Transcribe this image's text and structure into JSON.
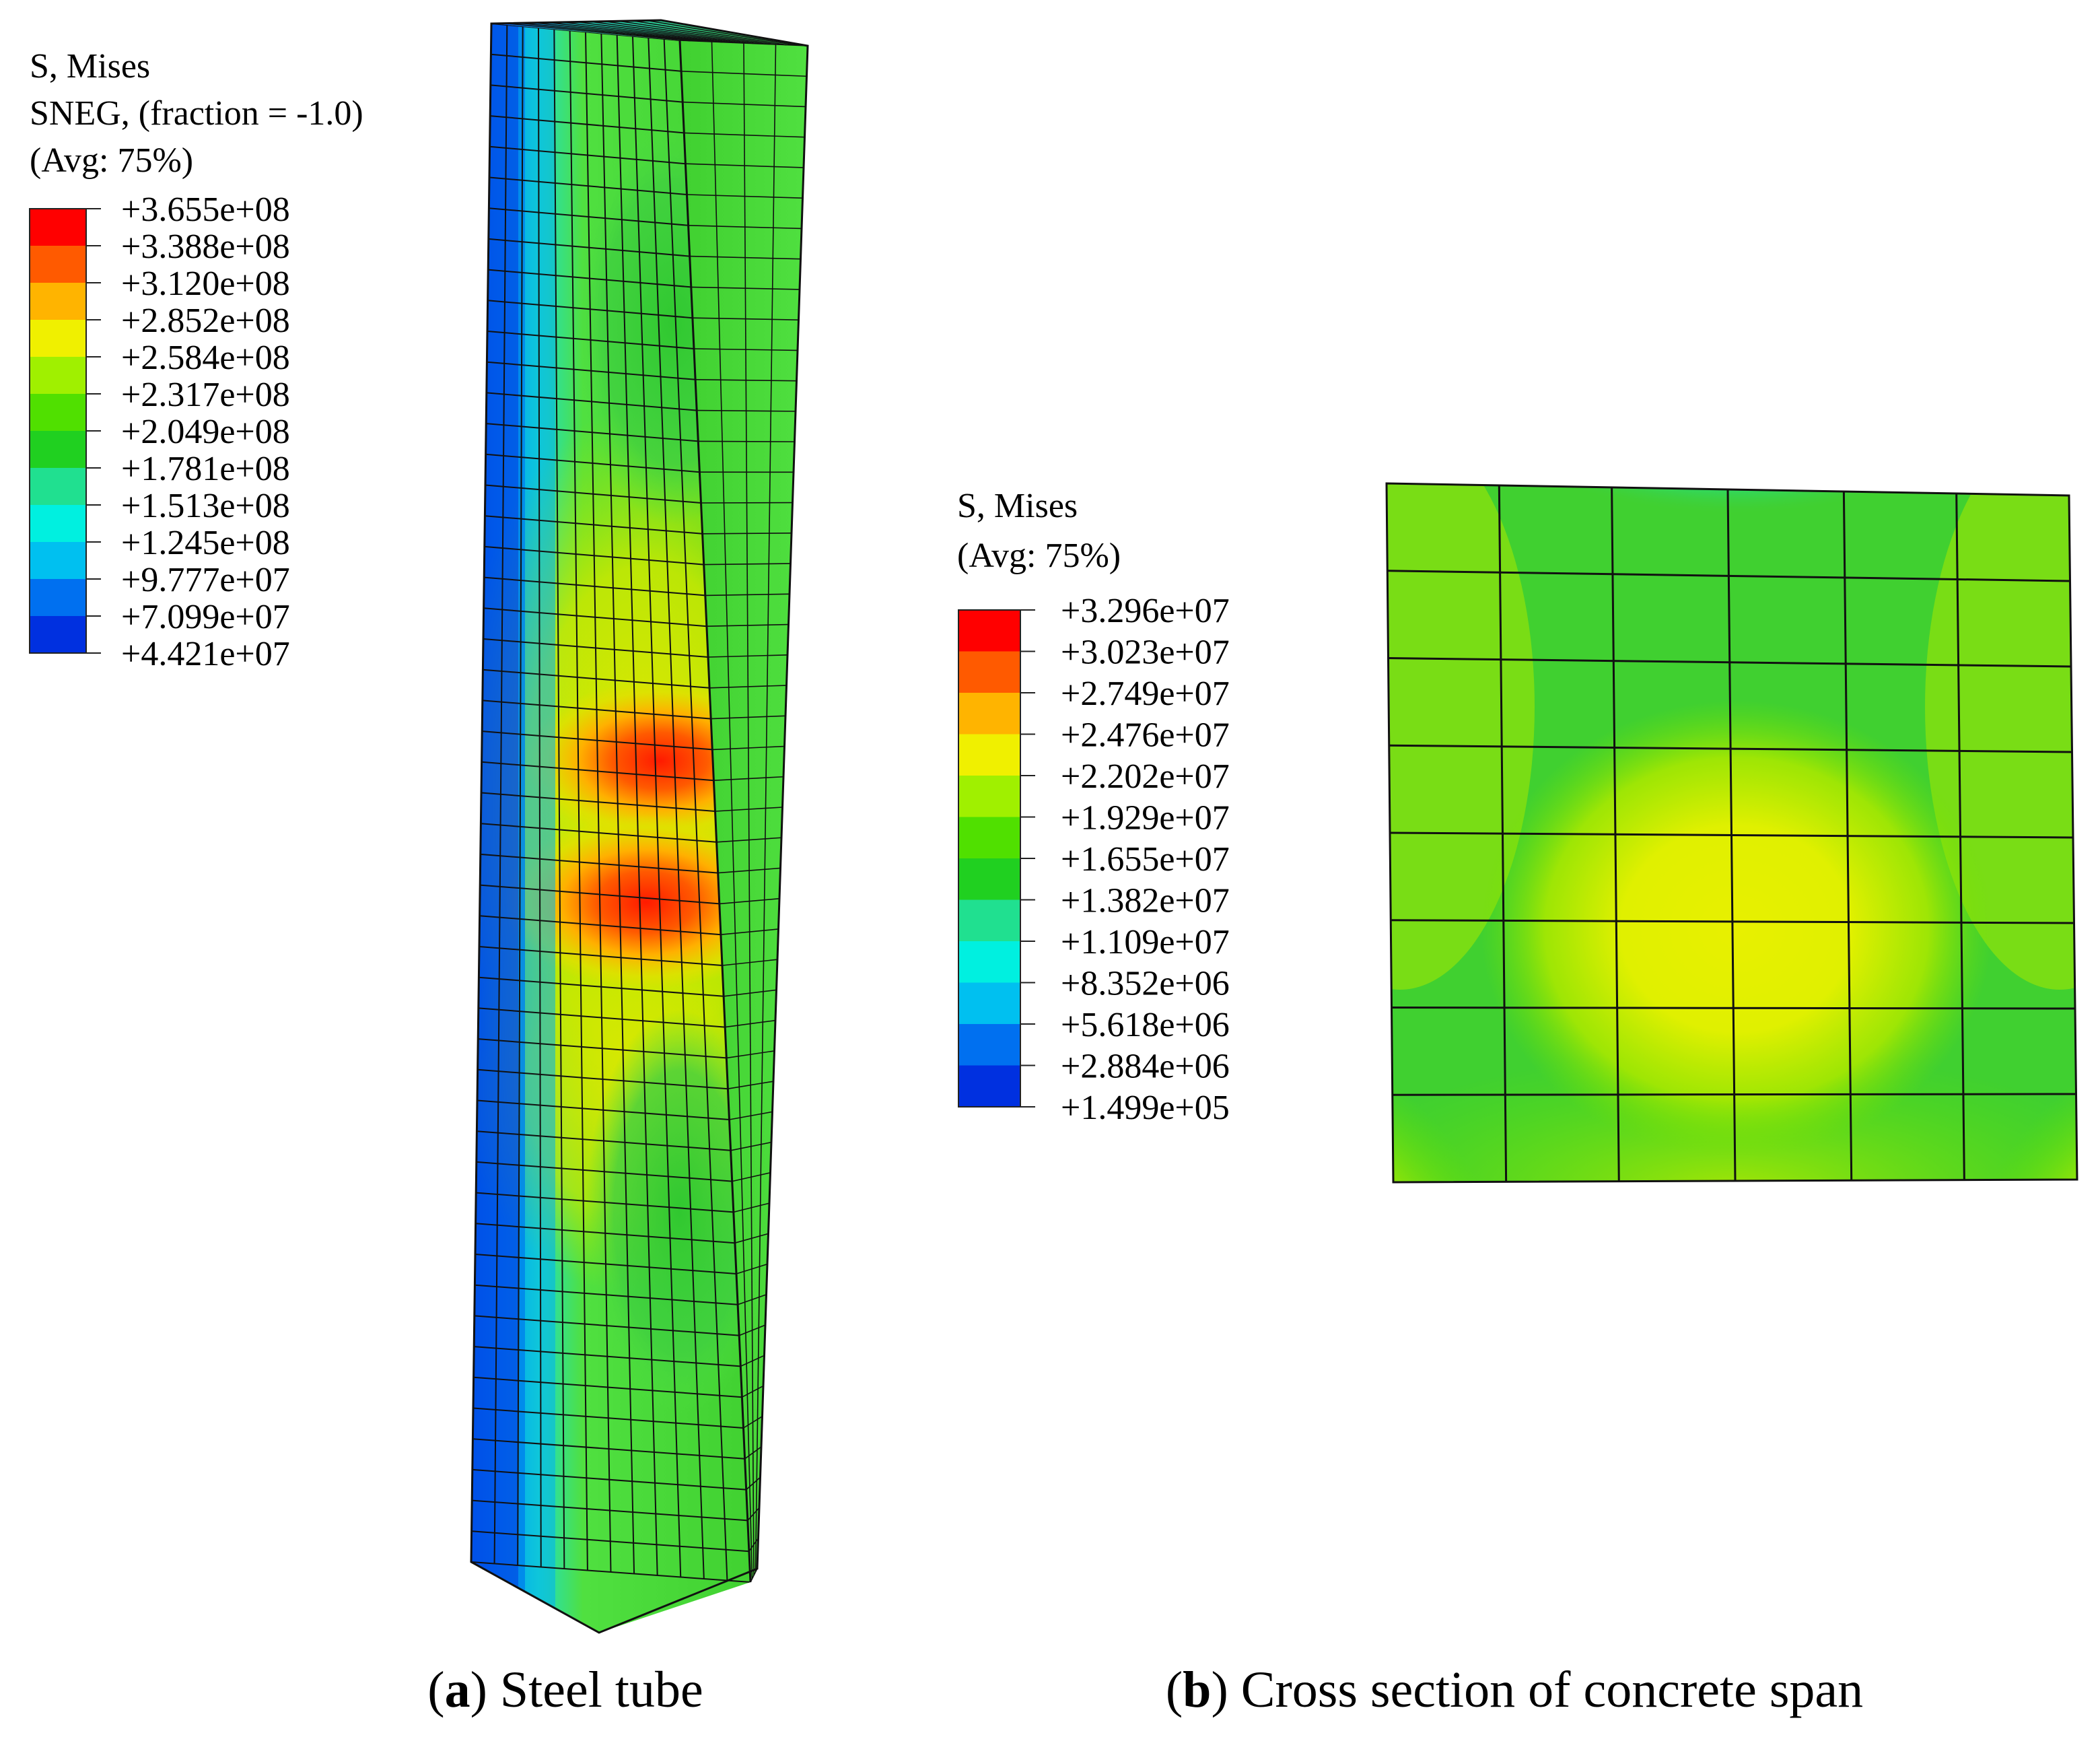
{
  "panel_a": {
    "legend": {
      "title_lines": [
        "S, Mises",
        "SNEG, (fraction = -1.0)",
        "(Avg: 75%)"
      ],
      "values": [
        "+3.655e+08",
        "+3.388e+08",
        "+3.120e+08",
        "+2.852e+08",
        "+2.584e+08",
        "+2.317e+08",
        "+2.049e+08",
        "+1.781e+08",
        "+1.513e+08",
        "+1.245e+08",
        "+9.777e+07",
        "+7.099e+07",
        "+4.421e+07"
      ]
    },
    "caption_letter": "a",
    "caption_text": " Steel tube"
  },
  "panel_b": {
    "legend": {
      "title_lines": [
        "S, Mises",
        "(Avg: 75%)"
      ],
      "values": [
        "+3.296e+07",
        "+3.023e+07",
        "+2.749e+07",
        "+2.476e+07",
        "+2.202e+07",
        "+1.929e+07",
        "+1.655e+07",
        "+1.382e+07",
        "+1.109e+07",
        "+8.352e+06",
        "+5.618e+06",
        "+2.884e+06",
        "+1.499e+05"
      ]
    },
    "caption_letter": "b",
    "caption_text": " Cross section of concrete span"
  },
  "colors": {
    "contour_bands": [
      "#ff0000",
      "#ff5a00",
      "#ffb400",
      "#f0f000",
      "#a0f000",
      "#50e000",
      "#20d020",
      "#20e090",
      "#00f0e0",
      "#00c0f0",
      "#0070f0",
      "#0030e0"
    ],
    "mesh_line": "#111111"
  }
}
